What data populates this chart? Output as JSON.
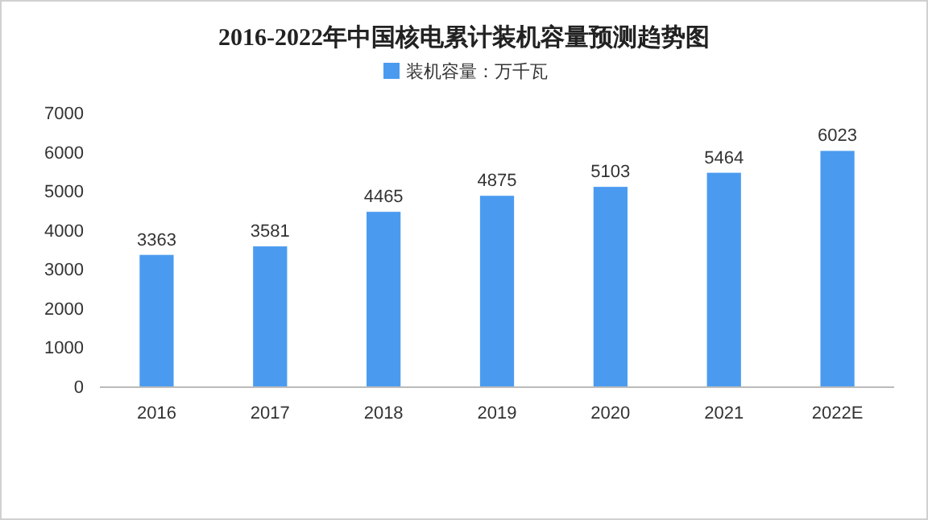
{
  "chart_data": {
    "type": "bar",
    "title": "2016-2022年中国核电累计装机容量预测趋势图",
    "categories": [
      "2016",
      "2017",
      "2018",
      "2019",
      "2020",
      "2021",
      "2022E"
    ],
    "series": [
      {
        "name": "装机容量：万千瓦",
        "color": "#4a9bf0",
        "values": [
          3363,
          3581,
          4465,
          4875,
          5103,
          5464,
          6023
        ]
      }
    ],
    "ylim": [
      0,
      7000
    ],
    "yticks": [
      0,
      1000,
      2000,
      3000,
      4000,
      5000,
      6000,
      7000
    ],
    "data_labels": true,
    "legend": "top",
    "grid": false
  }
}
